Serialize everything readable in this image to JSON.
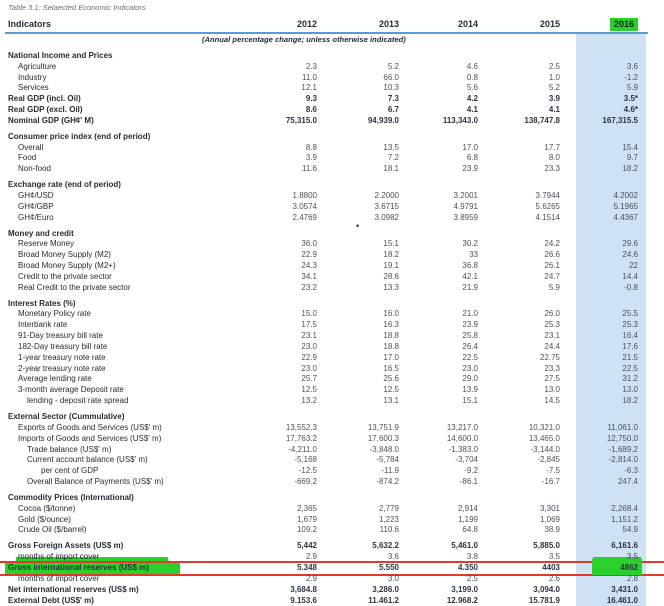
{
  "title": "Table 3.1: Selaected Economic Indicators",
  "table": {
    "indicator_header": "Indicators",
    "years": [
      "2012",
      "2013",
      "2014",
      "2015",
      "2016"
    ],
    "highlighted_year": "2016",
    "subheader": "(Annual percentage change; unless otherwise indicated)",
    "stray_bullet": "•",
    "sections": [
      {
        "heading": "National Income and Prices",
        "rows": [
          {
            "label": "Agriculture",
            "indent": 1,
            "bold": false,
            "values": [
              "2.3",
              "5.2",
              "4.6",
              "2.5",
              "3.6"
            ]
          },
          {
            "label": "Industry",
            "indent": 1,
            "bold": false,
            "values": [
              "11.0",
              "66.0",
              "0.8",
              "1.0",
              "-1.2"
            ]
          },
          {
            "label": "Services",
            "indent": 1,
            "bold": false,
            "values": [
              "12.1",
              "10.3",
              "5.6",
              "5.2",
              "5.9"
            ]
          },
          {
            "label": "Real GDP (incl. Oil)",
            "indent": 0,
            "bold": true,
            "values": [
              "9.3",
              "7.3",
              "4.2",
              "3.9",
              "3.5*"
            ]
          },
          {
            "label": "Real GDP (excl. Oil)",
            "indent": 0,
            "bold": true,
            "values": [
              "8.6",
              "6.7",
              "4.1",
              "4.1",
              "4.6*"
            ]
          },
          {
            "label": "Nominal GDP (GH¢' M)",
            "indent": 0,
            "bold": true,
            "values": [
              "75,315.0",
              "94,939.0",
              "113,343.0",
              "138,747.8",
              "167,315.5"
            ]
          }
        ]
      },
      {
        "heading": "Consumer price index (end of period)",
        "rows": [
          {
            "label": "Overall",
            "indent": 1,
            "bold": false,
            "values": [
              "8.8",
              "13.5",
              "17.0",
              "17.7",
              "15.4"
            ]
          },
          {
            "label": "Food",
            "indent": 1,
            "bold": false,
            "values": [
              "3.9",
              "7.2",
              "6.8",
              "8.0",
              "9.7"
            ]
          },
          {
            "label": "Non-food",
            "indent": 1,
            "bold": false,
            "values": [
              "11.6",
              "18.1",
              "23.9",
              "23.3",
              "18.2"
            ]
          }
        ]
      },
      {
        "heading": "Exchange rate (end of period)",
        "rows": [
          {
            "label": "GH¢/USD",
            "indent": 1,
            "bold": false,
            "values": [
              "1.8800",
              "2.2000",
              "3.2001",
              "3.7944",
              "4.2002"
            ]
          },
          {
            "label": "GH¢/GBP",
            "indent": 1,
            "bold": false,
            "values": [
              "3.0574",
              "3.6715",
              "4.9791",
              "5.6265",
              "5.1965"
            ]
          },
          {
            "label": "GH¢/Euro",
            "indent": 1,
            "bold": false,
            "values": [
              "2.4769",
              "3.0982",
              "3.8959",
              "4.1514",
              "4.4367"
            ]
          }
        ]
      },
      {
        "heading": "Money and credit",
        "rows": [
          {
            "label": "Reserve Money",
            "indent": 1,
            "bold": false,
            "values": [
              "36.0",
              "15.1",
              "30.2",
              "24.2",
              "29.6"
            ]
          },
          {
            "label": "Broad Money Supply (M2)",
            "indent": 1,
            "bold": false,
            "values": [
              "22.9",
              "18.2",
              "33",
              "26.6",
              "24.6"
            ]
          },
          {
            "label": "Broad Money Supply (M2+)",
            "indent": 1,
            "bold": false,
            "values": [
              "24.3",
              "19.1",
              "36.8",
              "26.1",
              "22"
            ]
          },
          {
            "label": "Credit to the private sector",
            "indent": 1,
            "bold": false,
            "values": [
              "34.1",
              "28.6",
              "42.1",
              "24.7",
              "14.4"
            ]
          },
          {
            "label": "Real Credit to the private sector",
            "indent": 1,
            "bold": false,
            "values": [
              "23.2",
              "13.3",
              "21.9",
              "5.9",
              "-0.8"
            ]
          }
        ]
      },
      {
        "heading": "Interest Rates (%)",
        "rows": [
          {
            "label": "Monetary Policy rate",
            "indent": 1,
            "bold": false,
            "values": [
              "15.0",
              "16.0",
              "21.0",
              "26.0",
              "25.5"
            ]
          },
          {
            "label": "Interbank rate",
            "indent": 1,
            "bold": false,
            "values": [
              "17.5",
              "16.3",
              "23.9",
              "25.3",
              "25.3"
            ]
          },
          {
            "label": "91-Day treasury bill rate",
            "indent": 1,
            "bold": false,
            "values": [
              "23.1",
              "18.8",
              "25.8",
              "23.1",
              "16.4"
            ]
          },
          {
            "label": "182-Day treasury bill rate",
            "indent": 1,
            "bold": false,
            "values": [
              "23.0",
              "18.8",
              "26.4",
              "24.4",
              "17.6"
            ]
          },
          {
            "label": "1-year treasury note rate",
            "indent": 1,
            "bold": false,
            "values": [
              "22.9",
              "17.0",
              "22.5",
              "22.75",
              "21.5"
            ]
          },
          {
            "label": "2-year treasury note rate",
            "indent": 1,
            "bold": false,
            "values": [
              "23.0",
              "16.5",
              "23.0",
              "23.3",
              "22.5"
            ]
          },
          {
            "label": "Average lending rate",
            "indent": 1,
            "bold": false,
            "values": [
              "25.7",
              "25.6",
              "29.0",
              "27.5",
              "31.2"
            ]
          },
          {
            "label": "3-month average Deposit rate",
            "indent": 1,
            "bold": false,
            "values": [
              "12.5",
              "12.5",
              "13.9",
              "13.0",
              "13.0"
            ]
          },
          {
            "label": "lending - deposit rate spread",
            "indent": 2,
            "bold": false,
            "values": [
              "13.2",
              "13.1",
              "15.1",
              "14.5",
              "18.2"
            ]
          }
        ]
      },
      {
        "heading": "External Sector (Cummulative)",
        "rows": [
          {
            "label": "Exports of Goods and Services (US$' m)",
            "indent": 1,
            "bold": false,
            "values": [
              "13,552.3",
              "13,751.9",
              "13,217.0",
              "10,321.0",
              "11,061.0"
            ]
          },
          {
            "label": "Imports of Goods and Services (US$' m)",
            "indent": 1,
            "bold": false,
            "values": [
              "17,763.2",
              "17,600.3",
              "14,600.0",
              "13,465.0",
              "12,750.0"
            ]
          },
          {
            "label": "Trade balance (US$' m)",
            "indent": 2,
            "bold": false,
            "values": [
              "-4,211.0",
              "-3,848.0",
              "-1,383.0",
              "-3,144.0",
              "-1,689.2"
            ]
          },
          {
            "label": "Current account balance (US$' m)",
            "indent": 2,
            "bold": false,
            "values": [
              "-5,168",
              "-5,784",
              "-3,704",
              "-2,845",
              "-2,814.0"
            ]
          },
          {
            "label": "per cent of GDP",
            "indent": 3,
            "bold": false,
            "values": [
              "-12.5",
              "-11.9",
              "-9.2",
              "-7.5",
              "-6.3"
            ]
          },
          {
            "label": "Overall Balance of Payments (US$' m)",
            "indent": 2,
            "bold": false,
            "values": [
              "-669.2",
              "-874.2",
              "-86.1",
              "-16.7",
              "247.4"
            ]
          }
        ]
      },
      {
        "heading": "Commodity Prices (International)",
        "rows": [
          {
            "label": "Cocoa ($/tonne)",
            "indent": 1,
            "bold": false,
            "values": [
              "2,365",
              "2,779",
              "2,914",
              "3,301",
              "2,268.4"
            ]
          },
          {
            "label": "Gold ($/ounce)",
            "indent": 1,
            "bold": false,
            "values": [
              "1,679",
              "1,223",
              "1,199",
              "1,069",
              "1,151.2"
            ]
          },
          {
            "label": "Crude Oil ($/barrel)",
            "indent": 1,
            "bold": false,
            "values": [
              "109.2",
              "110.6",
              "64.8",
              "38.9",
              "54.9"
            ]
          }
        ]
      },
      {
        "heading": "",
        "rows": [
          {
            "label": "Gross Foreign Assets (US$ m)",
            "indent": 0,
            "bold": true,
            "values": [
              "5,442",
              "5,632.2",
              "5,461.0",
              "5,885.0",
              "6,161.6"
            ]
          },
          {
            "label": "months of import cover",
            "indent": 1,
            "bold": false,
            "pre_highlight": true,
            "values": [
              "2.9",
              "3.6",
              "3.8",
              "3.5",
              "3.5"
            ]
          },
          {
            "label": "Gross international reserves (US$ m)",
            "indent": 0,
            "bold": true,
            "highlight": true,
            "values": [
              "5.348",
              "5.550",
              "4.350",
              "4403",
              "4862"
            ]
          },
          {
            "label": "months of import cover",
            "indent": 1,
            "bold": false,
            "values": [
              "2.9",
              "3.0",
              "2.5",
              "2.6",
              "2.8"
            ]
          },
          {
            "label": "Net international reserves (US$ m)",
            "indent": 0,
            "bold": true,
            "values": [
              "3,684.8",
              "3,286.0",
              "3,199.0",
              "3,094.0",
              "3,431.0"
            ]
          },
          {
            "label": "External Debt (US$' m)",
            "indent": 0,
            "bold": true,
            "values": [
              "9.153.6",
              "11.461.2",
              "12.968.2",
              "15.781.9",
              "16.461.0"
            ]
          }
        ]
      }
    ]
  },
  "annotations": {
    "highlight_green": "#2bd12b",
    "underline_red": "#e2392d",
    "column_band_blue": "#cfe2f3",
    "header_rule_blue": "#5b9bd5",
    "highlighted_row_label": "Gross international reserves (US$ m)",
    "highlighted_value_2016": "4862"
  }
}
